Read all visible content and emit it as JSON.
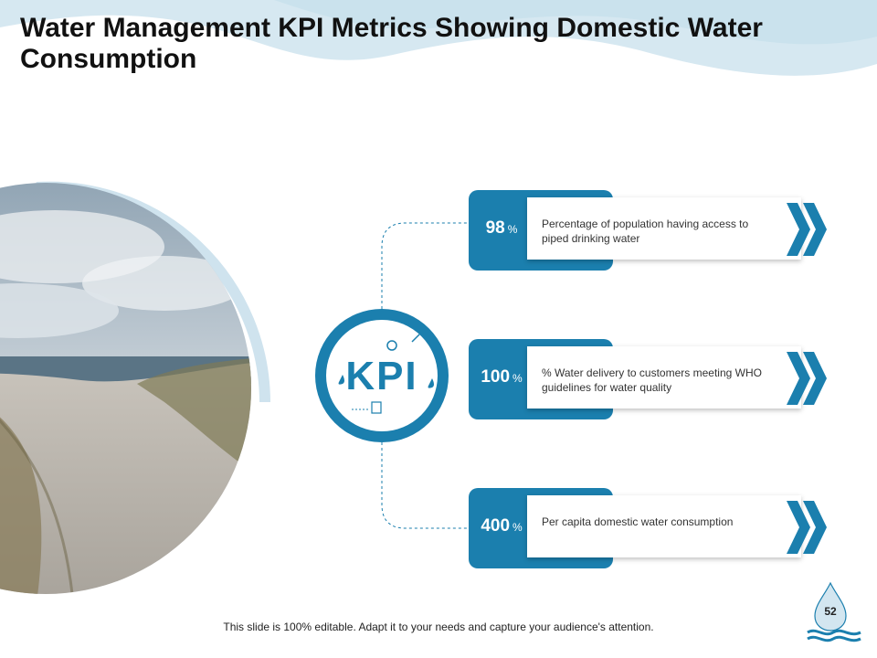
{
  "title": "Water Management KPI Metrics Showing Domestic Water Consumption",
  "kpi_label": "KPI",
  "metrics": [
    {
      "value": "98",
      "unit": "%",
      "description": "Percentage of population having access to piped drinking water"
    },
    {
      "value": "100",
      "unit": "%",
      "description": "% Water delivery to customers meeting WHO guidelines for water quality"
    },
    {
      "value": "400",
      "unit": "%",
      "description": "Per capita domestic water consumption"
    }
  ],
  "footer": "This slide is 100% editable. Adapt it to your needs and capture your audience's attention.",
  "page_number": "52",
  "colors": {
    "accent": "#1b7fae",
    "light_wave": "#d4e7f0"
  }
}
